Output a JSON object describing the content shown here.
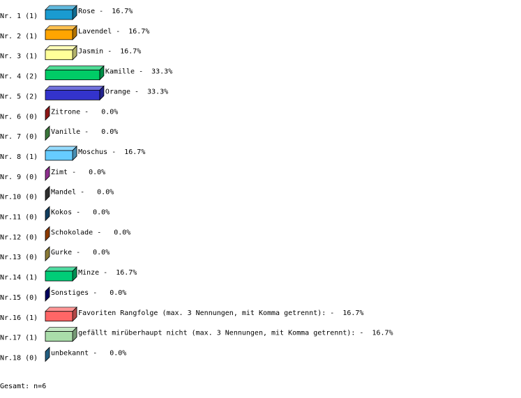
{
  "chart_data": {
    "type": "bar3d",
    "row_labels": [
      "Nr. 1 (1)",
      "Nr. 2 (1)",
      "Nr. 3 (1)",
      "Nr. 4 (2)",
      "Nr. 5 (2)",
      "Nr. 6 (0)",
      "Nr. 7 (0)",
      "Nr. 8 (1)",
      "Nr. 9 (0)",
      "Nr.10 (0)",
      "Nr.11 (0)",
      "Nr.12 (0)",
      "Nr.13 (0)",
      "Nr.14 (1)",
      "Nr.15 (0)",
      "Nr.16 (1)",
      "Nr.17 (1)",
      "Nr.18 (0)"
    ],
    "categories": [
      "Rose",
      "Lavendel",
      "Jasmin",
      "Kamille",
      "Orange",
      "Zitrone",
      "Vanille",
      "Moschus",
      "Zimt",
      "Mandel",
      "Kokos",
      "Schokolade",
      "Gurke",
      "Minze",
      "Sonstiges",
      "Favoriten Rangfolge (max. 3 Nennungen, mit Komma getrennt):",
      "gefällt mirüberhaupt nicht (max. 3 Nennungen, mit Komma getrennt):",
      "unbekannt"
    ],
    "separator": "-",
    "values": [
      16.7,
      16.7,
      16.7,
      33.3,
      33.3,
      0,
      0,
      16.7,
      0,
      0,
      0,
      0,
      0,
      16.7,
      0,
      16.7,
      16.7,
      0
    ],
    "value_labels": [
      "16.7%",
      "16.7%",
      "16.7%",
      "33.3%",
      "33.3%",
      "0.0%",
      "0.0%",
      "16.7%",
      "0.0%",
      "0.0%",
      "0.0%",
      "0.0%",
      "0.0%",
      "16.7%",
      "0.0%",
      "16.7%",
      "16.7%",
      "0.0%"
    ],
    "colors": [
      "#1a9bd0",
      "#ffa500",
      "#ffff99",
      "#00cc66",
      "#3333cc",
      "#cc2222",
      "#55aa55",
      "#66ccff",
      "#cc44cc",
      "#444444",
      "#1a5a8a",
      "#cc5500",
      "#c8b050",
      "#00cc77",
      "#000088",
      "#ff6666",
      "#aaddaa",
      "#3388bb"
    ],
    "xlim": [
      0,
      100
    ],
    "footer": "Gesamt: n=6"
  }
}
